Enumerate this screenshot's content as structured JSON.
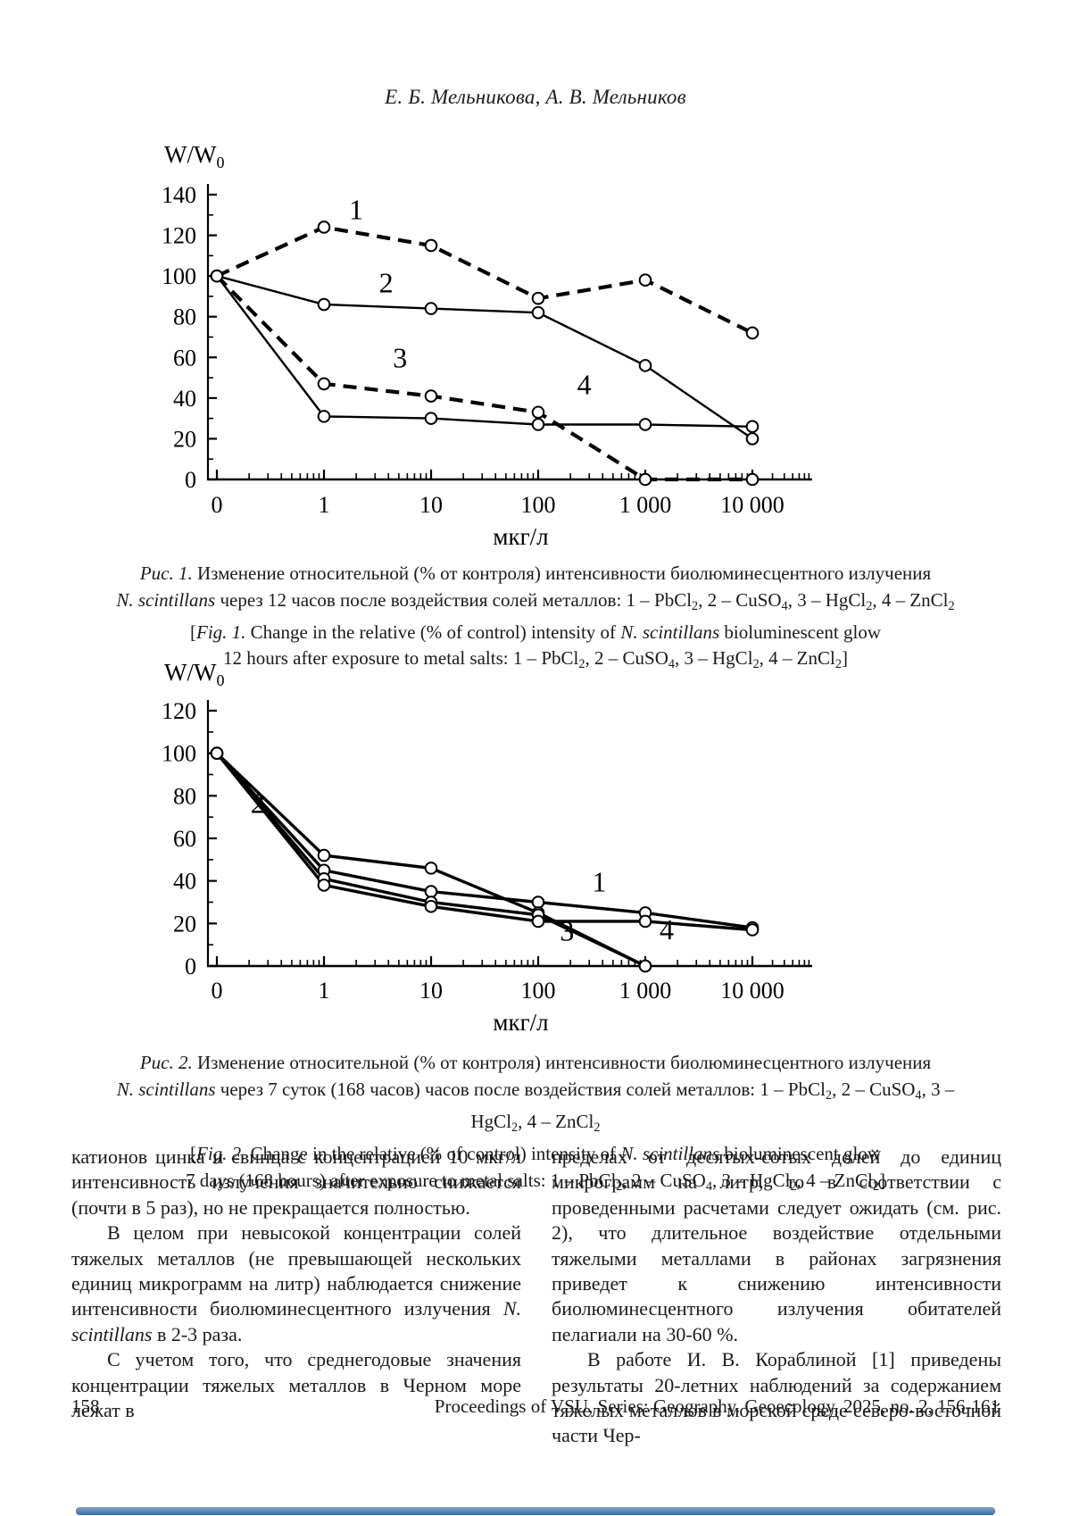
{
  "page": {
    "author_line": "Е. Б. Мельникова, А. В. Мельников",
    "footer": {
      "page_number": "158",
      "journal_line": "Proceedings of VSU, Series: Geography. Geoecology, 2025, no. 2, 156-161"
    },
    "bottom_bar_color": "#4e7fc1"
  },
  "chart_data": [
    {
      "type": "line",
      "title": "Fig. 1 — relative bioluminescence intensity 12 hours after exposure",
      "ylabel_main": "W/W",
      "ylabel_sub": "0",
      "xlabel": "мкг/л",
      "categories": [
        "0",
        "1",
        "10",
        "100",
        "1 000",
        "10 000"
      ],
      "ylim": [
        0,
        140
      ],
      "yticks": [
        0,
        20,
        40,
        60,
        80,
        100,
        120,
        140
      ],
      "grid": false,
      "legend_position": "numbers drawn on curves",
      "series": [
        {
          "name": "1",
          "substance": "PbCl2",
          "dash": true,
          "values": [
            100,
            124,
            115,
            89,
            98,
            72
          ]
        },
        {
          "name": "2",
          "substance": "CuSO4",
          "dash": false,
          "values": [
            100,
            86,
            84,
            82,
            56,
            20
          ]
        },
        {
          "name": "3",
          "substance": "HgCl2",
          "dash": true,
          "values": [
            100,
            47,
            41,
            33,
            0,
            0
          ]
        },
        {
          "name": "4",
          "substance": "ZnCl2",
          "dash": false,
          "values": [
            100,
            31,
            30,
            27,
            27,
            26
          ]
        }
      ],
      "annotations": [
        {
          "text": "1",
          "xi": 1.3,
          "v": 128
        },
        {
          "text": "2",
          "xi": 1.58,
          "v": 92
        },
        {
          "text": "3",
          "xi": 1.71,
          "v": 55
        },
        {
          "text": "4",
          "xi": 3.43,
          "v": 42
        }
      ]
    },
    {
      "type": "line",
      "title": "Fig. 2 — relative bioluminescence intensity 7 days after exposure",
      "ylabel_main": "W/W",
      "ylabel_sub": "0",
      "xlabel": "мкг/л",
      "categories": [
        "0",
        "1",
        "10",
        "100",
        "1 000",
        "10 000"
      ],
      "ylim": [
        0,
        120
      ],
      "yticks": [
        0,
        20,
        40,
        60,
        80,
        100,
        120
      ],
      "grid": false,
      "legend_position": "numbers drawn on curves",
      "series": [
        {
          "name": "1",
          "substance": "PbCl2",
          "dash": false,
          "values": [
            100,
            45,
            35,
            30,
            25,
            18
          ]
        },
        {
          "name": "2",
          "substance": "CuSO4",
          "dash": false,
          "values": [
            100,
            52,
            46,
            25,
            0,
            null
          ]
        },
        {
          "name": "3",
          "substance": "HgCl2",
          "dash": false,
          "values": [
            100,
            41,
            30,
            24,
            0,
            null
          ]
        },
        {
          "name": "4",
          "substance": "ZnCl2",
          "dash": false,
          "values": [
            100,
            38,
            28,
            21,
            21,
            17
          ]
        }
      ],
      "annotations": [
        {
          "text": "2",
          "xi": 0.38,
          "v": 72
        },
        {
          "text": "1",
          "xi": 3.57,
          "v": 35
        },
        {
          "text": "3",
          "xi": 3.27,
          "v": 12
        },
        {
          "text": "4",
          "xi": 4.2,
          "v": 12.5
        }
      ]
    }
  ],
  "captions": {
    "fig1": [
      [
        {
          "t": "Рис. 1.  ",
          "i": 1
        },
        {
          "t": "Изменение относительной (% от контроля) интенсивности биолюминесцентного излучения"
        }
      ],
      [
        {
          "t": "N. scintillans",
          "i": 1
        },
        {
          "t": " через 12 часов после воздействия солей металлов: 1 – PbCl"
        },
        {
          "t": "2",
          "sub": 1
        },
        {
          "t": ", 2 – CuSO"
        },
        {
          "t": "4",
          "sub": 1
        },
        {
          "t": ", 3 – HgCl"
        },
        {
          "t": "2",
          "sub": 1
        },
        {
          "t": ", 4 – ZnCl"
        },
        {
          "t": "2",
          "sub": 1
        }
      ],
      [
        {
          "t": "["
        },
        {
          "t": "Fig. 1.",
          "i": 1
        },
        {
          "t": " Change in the relative (% of control) intensity of "
        },
        {
          "t": "N. scintillans",
          "i": 1
        },
        {
          "t": " bioluminescent glow"
        }
      ],
      [
        {
          "t": "12 hours after exposure to metal salts: 1 – PbCl"
        },
        {
          "t": "2",
          "sub": 1
        },
        {
          "t": ", 2 – CuSO"
        },
        {
          "t": "4",
          "sub": 1
        },
        {
          "t": ", 3 – HgCl"
        },
        {
          "t": "2",
          "sub": 1
        },
        {
          "t": ", 4 – ZnCl"
        },
        {
          "t": "2",
          "sub": 1
        },
        {
          "t": "]"
        }
      ]
    ],
    "fig2": [
      [
        {
          "t": "Рис. 2. ",
          "i": 1
        },
        {
          "t": "Изменение относительной (% от контроля) интенсивности биолюминесцентного излучения"
        }
      ],
      [
        {
          "t": "N. scintillans",
          "i": 1
        },
        {
          "t": " через 7 суток (168 часов) часов после воздействия солей металлов: 1 – PbCl"
        },
        {
          "t": "2",
          "sub": 1
        },
        {
          "t": ", 2 – CuSO"
        },
        {
          "t": "4",
          "sub": 1
        },
        {
          "t": ", 3 – HgCl"
        },
        {
          "t": "2",
          "sub": 1
        },
        {
          "t": ", 4 – ZnCl"
        },
        {
          "t": "2",
          "sub": 1
        }
      ],
      [
        {
          "t": "["
        },
        {
          "t": "Fig. 2.",
          "i": 1
        },
        {
          "t": " Change in the relative (% of control) intensity of "
        },
        {
          "t": "N. scintillans",
          "i": 1
        },
        {
          "t": " bioluminescent glow"
        }
      ],
      [
        {
          "t": "7 days (168 hours) after exposure to metal salts: 1 – PbCl"
        },
        {
          "t": "2",
          "sub": 1
        },
        {
          "t": ", 2 – CuSO"
        },
        {
          "t": "4",
          "sub": 1
        },
        {
          "t": ", 3 – HgCl"
        },
        {
          "t": "2",
          "sub": 1
        },
        {
          "t": ", 4 – ZnCl"
        },
        {
          "t": "2",
          "sub": 1
        },
        {
          "t": "]"
        }
      ]
    ]
  },
  "body": {
    "left": [
      {
        "indent": false,
        "segs": [
          {
            "t": "катионов цинка и свинца с концентрацией 10 мкг/л интенсивность излучения значительно снижается (почти в 5 раз), но не прекращается полностью."
          }
        ]
      },
      {
        "indent": true,
        "segs": [
          {
            "t": "В целом при невысокой концентрации солей тяжелых металлов (не превышающей нескольких единиц микрограмм на литр) наблюдается снижение интенсивности биолюминесцентного излучения "
          },
          {
            "t": "N. scintillans",
            "i": 1
          },
          {
            "t": " в 2-3 раза."
          }
        ]
      },
      {
        "indent": true,
        "segs": [
          {
            "t": "С учетом того, что среднегодовые значения концентрации тяжелых металлов в Черном море лежат в"
          }
        ]
      }
    ],
    "right": [
      {
        "indent": false,
        "segs": [
          {
            "t": "пределах от десятых-сотых долей до единиц микрограмм на литр, то в соответствии с проведенными расчетами следует ожидать (см. рис. 2), что длительное воздействие отдельными тяжелыми металлами в районах загрязнения приведет к снижению интенсивности биолюминесцентного излучения обитателей пелагиали на 30-60 %."
          }
        ]
      },
      {
        "indent": true,
        "segs": [
          {
            "t": "В работе И. В. Кораблиной [1] приведены результаты 20-летних наблюдений за содержанием тяжелых металлов в морской среде северо-восточной части Чер-"
          }
        ]
      }
    ]
  }
}
